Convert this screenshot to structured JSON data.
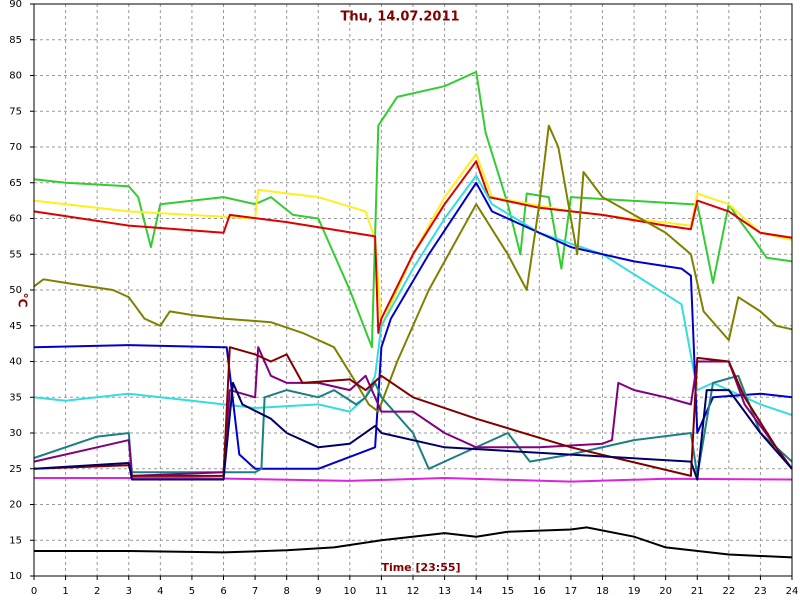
{
  "chart_data": {
    "type": "line",
    "title": "Thu, 14.07.2011",
    "xlabel": "Time [23:55]",
    "ylabel": "°C",
    "xlim": [
      0,
      24
    ],
    "ylim": [
      10,
      90
    ],
    "xticks": [
      0,
      1,
      2,
      3,
      4,
      5,
      6,
      7,
      8,
      9,
      10,
      11,
      12,
      13,
      14,
      15,
      16,
      17,
      18,
      19,
      20,
      21,
      22,
      23,
      24
    ],
    "yticks": [
      10,
      15,
      20,
      25,
      30,
      35,
      40,
      45,
      50,
      55,
      60,
      65,
      70,
      75,
      80,
      85,
      90
    ],
    "grid": true,
    "series": [
      {
        "color": "#000000",
        "x": [
          0,
          3,
          6,
          8,
          9.5,
          11,
          13,
          14,
          15,
          17,
          17.5,
          19,
          20,
          22,
          24
        ],
        "values": [
          13.5,
          13.5,
          13.3,
          13.6,
          14,
          15,
          16,
          15.5,
          16.2,
          16.5,
          16.8,
          15.5,
          14,
          13,
          12.6
        ]
      },
      {
        "color": "#dd22dd",
        "x": [
          0,
          5,
          10,
          13,
          17,
          20,
          24
        ],
        "values": [
          23.7,
          23.7,
          23.3,
          23.7,
          23.2,
          23.6,
          23.5
        ]
      },
      {
        "color": "#33cc33",
        "x": [
          0,
          1,
          3,
          3.3,
          3.7,
          4,
          6,
          7,
          7.5,
          8.2,
          9,
          10,
          10.7,
          10.9,
          11.5,
          13,
          14,
          14.3,
          15,
          15.4,
          15.6,
          16.3,
          16.7,
          17,
          20.8,
          21,
          21.5,
          22,
          22.3,
          22.8,
          23.2,
          24
        ],
        "values": [
          65.5,
          65,
          64.5,
          63,
          56,
          62,
          63,
          62,
          63,
          60.5,
          60,
          50,
          42,
          73,
          77,
          78.5,
          80.5,
          72,
          62,
          55,
          63.5,
          63,
          53,
          63,
          62,
          62,
          51,
          62,
          60,
          57,
          54.5,
          54
        ]
      },
      {
        "color": "#ffee22",
        "x": [
          0,
          3,
          7,
          7.1,
          9,
          10.5,
          10.8,
          11,
          12,
          13,
          14,
          14.5,
          17,
          20.8,
          21,
          22,
          23,
          24
        ],
        "values": [
          62.5,
          61,
          60,
          64,
          63,
          61,
          57,
          45,
          55,
          63,
          69,
          63,
          61,
          59,
          63.5,
          62,
          58,
          57
        ]
      },
      {
        "color": "#dd0000",
        "x": [
          0,
          3,
          6,
          6.2,
          8,
          10.8,
          10.9,
          11,
          12,
          13,
          14,
          14.4,
          16,
          18,
          20,
          20.8,
          21,
          22,
          23,
          24
        ],
        "values": [
          61,
          59,
          58,
          60.5,
          59.5,
          57.5,
          44,
          46,
          55,
          62,
          68,
          63,
          61.5,
          60.5,
          59,
          58.5,
          62.5,
          61,
          58,
          57.3
        ]
      },
      {
        "color": "#33dddd",
        "x": [
          0,
          1,
          3,
          5,
          7,
          9,
          10,
          10.5,
          10.8,
          11,
          12,
          13,
          14,
          14.5,
          16,
          18,
          20.5,
          21,
          21.5,
          22,
          23,
          24
        ],
        "values": [
          35,
          34.5,
          35.5,
          34.5,
          33.5,
          34,
          33,
          35,
          38,
          45,
          53,
          60,
          66,
          62,
          58,
          55,
          48,
          36,
          37,
          36,
          34,
          32.5
        ]
      },
      {
        "color": "#0000cc",
        "x": [
          0,
          3,
          6,
          6.1,
          6.5,
          7,
          9,
          10.8,
          11,
          11.3,
          12.5,
          14,
          14.5,
          15.5,
          17,
          19,
          20.5,
          20.8,
          21,
          21.5,
          23,
          24
        ],
        "values": [
          42,
          42.3,
          42,
          42,
          27,
          25,
          25,
          28,
          42,
          46,
          55,
          65,
          61,
          59,
          56,
          54,
          53,
          52,
          30,
          35,
          35.5,
          35
        ]
      },
      {
        "color": "#808000",
        "x": [
          0,
          0.3,
          1,
          2.5,
          3,
          3.5,
          4,
          4.3,
          5,
          6,
          7.5,
          8.5,
          9.5,
          10.2,
          10.6,
          10.9,
          11.5,
          12.5,
          14,
          15,
          15.6,
          16,
          16.3,
          16.6,
          17,
          17.2,
          17.4,
          18,
          20,
          20.8,
          21.2,
          22,
          22.3,
          23,
          23.5,
          24
        ],
        "values": [
          50.5,
          51.5,
          51,
          50,
          49,
          46,
          45,
          47,
          46.5,
          46,
          45.5,
          44,
          42,
          37,
          34,
          33,
          40,
          50,
          62,
          55,
          50,
          62,
          73,
          70,
          60,
          55,
          66.5,
          63,
          58,
          55,
          47,
          43,
          49,
          47,
          45,
          44.5
        ]
      },
      {
        "color": "#1a8080",
        "x": [
          0,
          2,
          3,
          3.1,
          7,
          7.2,
          7.3,
          8,
          9,
          9.5,
          10.2,
          10.5,
          10.8,
          11,
          12,
          12.5,
          13.5,
          15,
          15.7,
          17,
          19,
          20.8,
          21,
          21.5,
          22.3,
          23,
          24
        ],
        "values": [
          26.5,
          29.5,
          30,
          24.5,
          24.5,
          25,
          35,
          36,
          35,
          36,
          34,
          35,
          37,
          35,
          30,
          25,
          27,
          30,
          26,
          27,
          29,
          30,
          24,
          37,
          38,
          30,
          26
        ]
      },
      {
        "color": "#800080",
        "x": [
          0,
          2,
          3,
          3.1,
          6,
          6.2,
          7,
          7.1,
          7.5,
          8,
          9,
          10,
          10.5,
          11,
          12,
          13,
          14,
          16,
          18,
          18.3,
          18.5,
          19,
          20,
          20.8,
          21,
          22,
          22.5,
          23.5,
          24
        ],
        "values": [
          26,
          28,
          29,
          24,
          24.5,
          36,
          35,
          42,
          38,
          37,
          37,
          36,
          38,
          33,
          33,
          30,
          28,
          28,
          28.5,
          29,
          37,
          36,
          35,
          34,
          40,
          40,
          34,
          28,
          25
        ]
      },
      {
        "color": "#800000",
        "x": [
          0,
          3,
          3.1,
          6,
          6.2,
          7,
          7.5,
          8,
          8.5,
          10,
          10.5,
          11,
          12,
          14,
          17,
          20.8,
          21,
          22,
          22.5,
          23.5,
          24
        ],
        "values": [
          25,
          25.5,
          24,
          24,
          42,
          41,
          40,
          41,
          37,
          37.5,
          36,
          38,
          35,
          32,
          28,
          24,
          40.5,
          40,
          35,
          28,
          25
        ]
      },
      {
        "color": "#000066",
        "x": [
          0,
          3,
          3.1,
          6,
          6.3,
          6.6,
          7.5,
          8,
          9,
          10,
          10.8,
          11,
          13,
          20.8,
          21,
          21.3,
          22,
          23,
          24
        ],
        "values": [
          25,
          25.8,
          23.5,
          23.5,
          37,
          34,
          32,
          30,
          28,
          28.5,
          31,
          30,
          28,
          26,
          23.5,
          36,
          36,
          30,
          25
        ]
      }
    ]
  }
}
